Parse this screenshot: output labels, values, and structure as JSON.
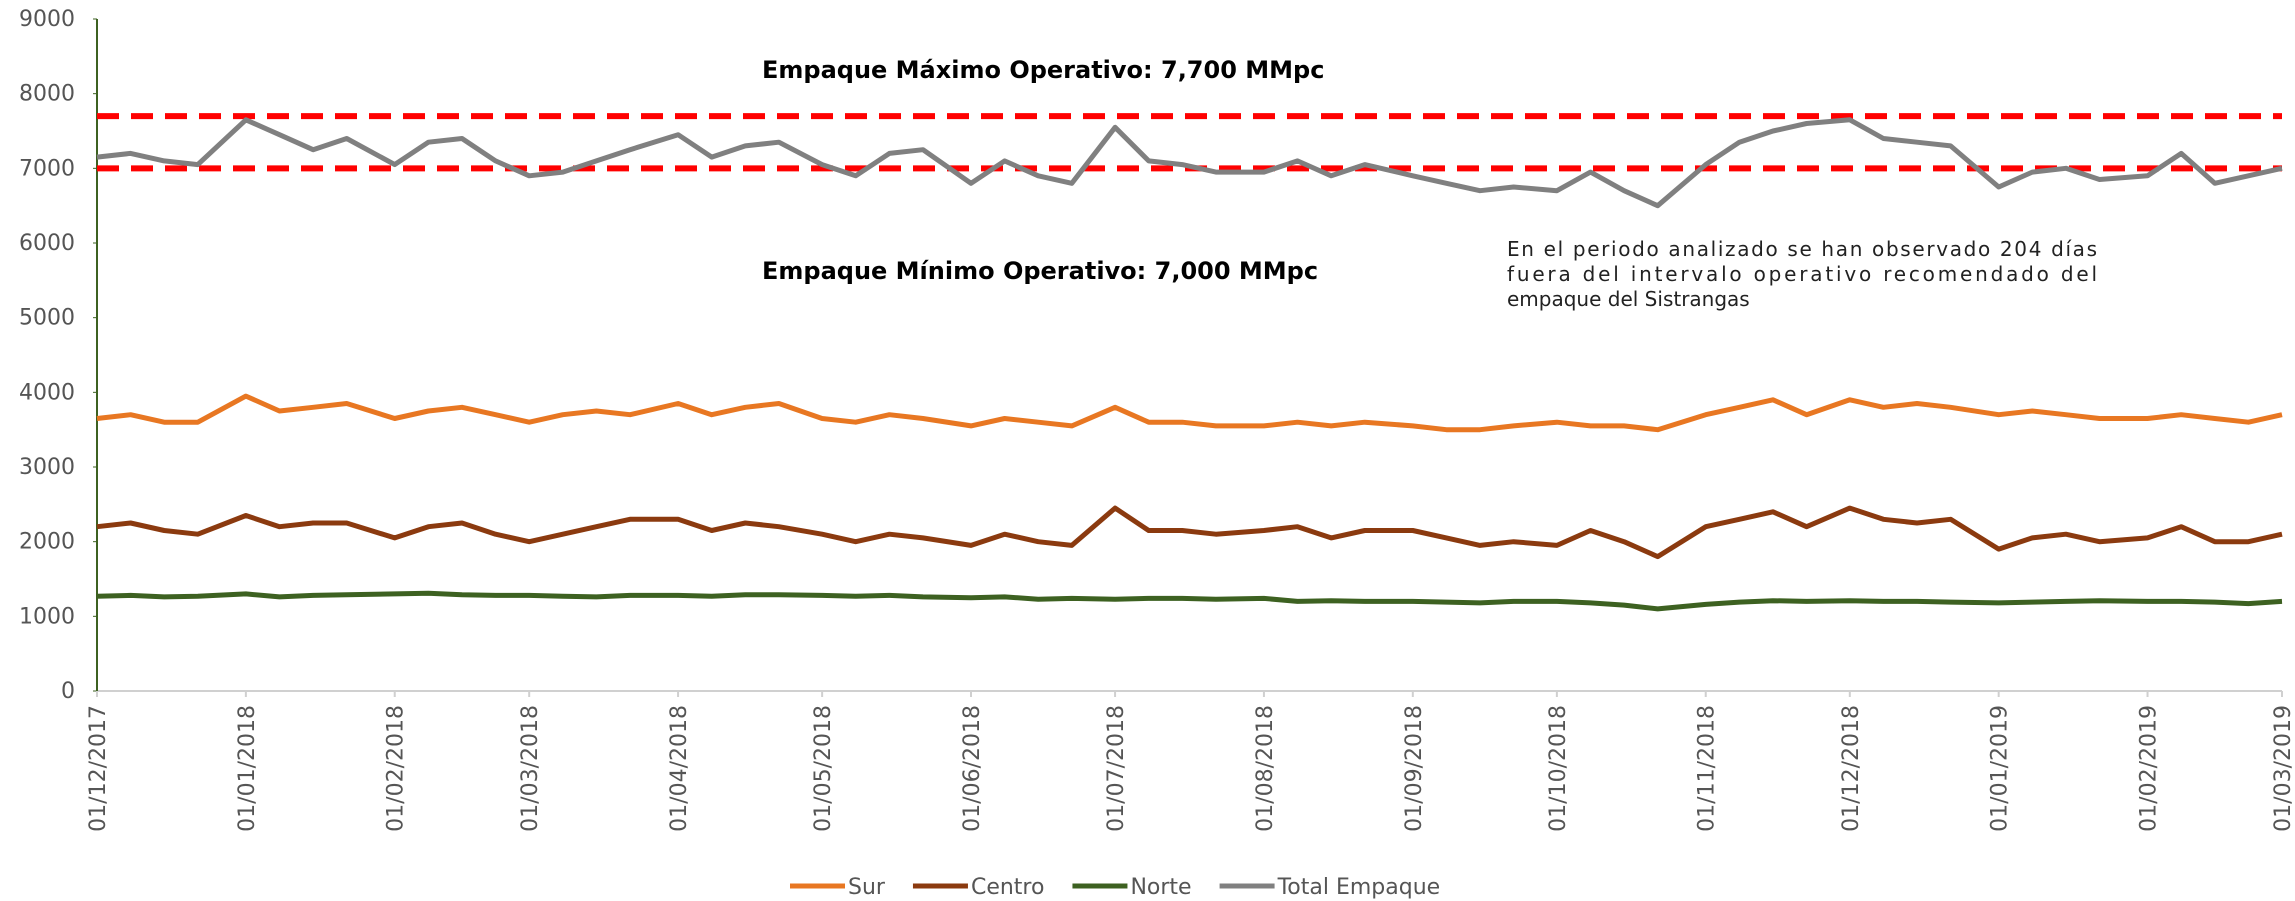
{
  "chart_data": {
    "type": "line",
    "x": [
      "01/12/2017",
      "08/12/2017",
      "15/12/2017",
      "22/12/2017",
      "01/01/2018",
      "08/01/2018",
      "15/01/2018",
      "22/01/2018",
      "01/02/2018",
      "08/02/2018",
      "15/02/2018",
      "22/02/2018",
      "01/03/2018",
      "08/03/2018",
      "15/03/2018",
      "22/03/2018",
      "01/04/2018",
      "08/04/2018",
      "15/04/2018",
      "22/04/2018",
      "01/05/2018",
      "08/05/2018",
      "15/05/2018",
      "22/05/2018",
      "01/06/2018",
      "08/06/2018",
      "15/06/2018",
      "22/06/2018",
      "01/07/2018",
      "08/07/2018",
      "15/07/2018",
      "22/07/2018",
      "01/08/2018",
      "08/08/2018",
      "15/08/2018",
      "22/08/2018",
      "01/09/2018",
      "08/09/2018",
      "15/09/2018",
      "22/09/2018",
      "01/10/2018",
      "08/10/2018",
      "15/10/2018",
      "22/10/2018",
      "01/11/2018",
      "08/11/2018",
      "15/11/2018",
      "22/11/2018",
      "01/12/2018",
      "08/12/2018",
      "15/12/2018",
      "22/12/2018",
      "01/01/2019",
      "08/01/2019",
      "15/01/2019",
      "22/01/2019",
      "01/02/2019",
      "08/02/2019",
      "15/02/2019",
      "22/02/2019",
      "01/03/2019"
    ],
    "series": [
      {
        "name": "Sur",
        "color": "#e87722",
        "values": [
          3650,
          3700,
          3600,
          3600,
          3950,
          3750,
          3800,
          3850,
          3650,
          3750,
          3800,
          3700,
          3600,
          3700,
          3750,
          3700,
          3850,
          3700,
          3800,
          3850,
          3650,
          3600,
          3700,
          3650,
          3550,
          3650,
          3600,
          3550,
          3800,
          3600,
          3600,
          3550,
          3550,
          3600,
          3550,
          3600,
          3550,
          3500,
          3500,
          3550,
          3600,
          3550,
          3550,
          3500,
          3700,
          3800,
          3900,
          3700,
          3900,
          3800,
          3850,
          3800,
          3700,
          3750,
          3700,
          3650,
          3650,
          3700,
          3650,
          3600,
          3700
        ]
      },
      {
        "name": "Centro",
        "color": "#8b3a0f",
        "values": [
          2200,
          2250,
          2150,
          2100,
          2350,
          2200,
          2250,
          2250,
          2050,
          2200,
          2250,
          2100,
          2000,
          2100,
          2200,
          2300,
          2300,
          2150,
          2250,
          2200,
          2100,
          2000,
          2100,
          2050,
          1950,
          2100,
          2000,
          1950,
          2450,
          2150,
          2150,
          2100,
          2150,
          2200,
          2050,
          2150,
          2150,
          2050,
          1950,
          2000,
          1950,
          2150,
          2000,
          1800,
          2200,
          2300,
          2400,
          2200,
          2450,
          2300,
          2250,
          2300,
          1900,
          2050,
          2100,
          2000,
          2050,
          2200,
          2000,
          2000,
          2100
        ]
      },
      {
        "name": "Norte",
        "color": "#3d6121",
        "values": [
          1270,
          1280,
          1260,
          1270,
          1300,
          1260,
          1280,
          1290,
          1300,
          1310,
          1290,
          1280,
          1280,
          1270,
          1260,
          1280,
          1280,
          1270,
          1290,
          1290,
          1280,
          1270,
          1280,
          1260,
          1250,
          1260,
          1230,
          1240,
          1230,
          1240,
          1240,
          1230,
          1240,
          1200,
          1210,
          1200,
          1200,
          1190,
          1180,
          1200,
          1200,
          1180,
          1150,
          1100,
          1160,
          1190,
          1210,
          1200,
          1210,
          1200,
          1200,
          1190,
          1180,
          1190,
          1200,
          1210,
          1200,
          1200,
          1190,
          1170,
          1200
        ]
      },
      {
        "name": "Total Empaque",
        "color": "#808080",
        "values": [
          7150,
          7200,
          7100,
          7050,
          7650,
          7450,
          7250,
          7400,
          7050,
          7350,
          7400,
          7100,
          6900,
          6950,
          7100,
          7250,
          7450,
          7150,
          7300,
          7350,
          7050,
          6900,
          7200,
          7250,
          6800,
          7100,
          6900,
          6800,
          7550,
          7100,
          7050,
          6950,
          6950,
          7100,
          6900,
          7050,
          6900,
          6800,
          6700,
          6750,
          6700,
          6950,
          6700,
          6500,
          7050,
          7350,
          7500,
          7600,
          7650,
          7400,
          7350,
          7300,
          6750,
          6950,
          7000,
          6850,
          6900,
          7200,
          6800,
          6900,
          7000
        ]
      }
    ],
    "xlim": [
      "01/12/2017",
      "01/03/2019"
    ],
    "xticks": [
      "01/12/2017",
      "01/01/2018",
      "01/02/2018",
      "01/03/2018",
      "01/04/2018",
      "01/05/2018",
      "01/06/2018",
      "01/07/2018",
      "01/08/2018",
      "01/09/2018",
      "01/10/2018",
      "01/11/2018",
      "01/12/2018",
      "01/01/2019",
      "01/02/2019",
      "01/03/2019"
    ],
    "ylim": [
      0,
      9000
    ],
    "yticks": [
      0,
      1000,
      2000,
      3000,
      4000,
      5000,
      6000,
      7000,
      8000,
      9000
    ],
    "reference_lines": [
      {
        "value": 7700,
        "label": "Empaque Máximo Operativo: 7,700 MMpc",
        "color": "#ff0000"
      },
      {
        "value": 7000,
        "label": "Empaque Mínimo Operativo: 7,000 MMpc",
        "color": "#ff0000"
      }
    ],
    "annotation": [
      "En el periodo analizado se han observado 204 días",
      "fuera del intervalo operativo recomendado del",
      "empaque del Sistrangas"
    ],
    "legend": "bottom"
  }
}
